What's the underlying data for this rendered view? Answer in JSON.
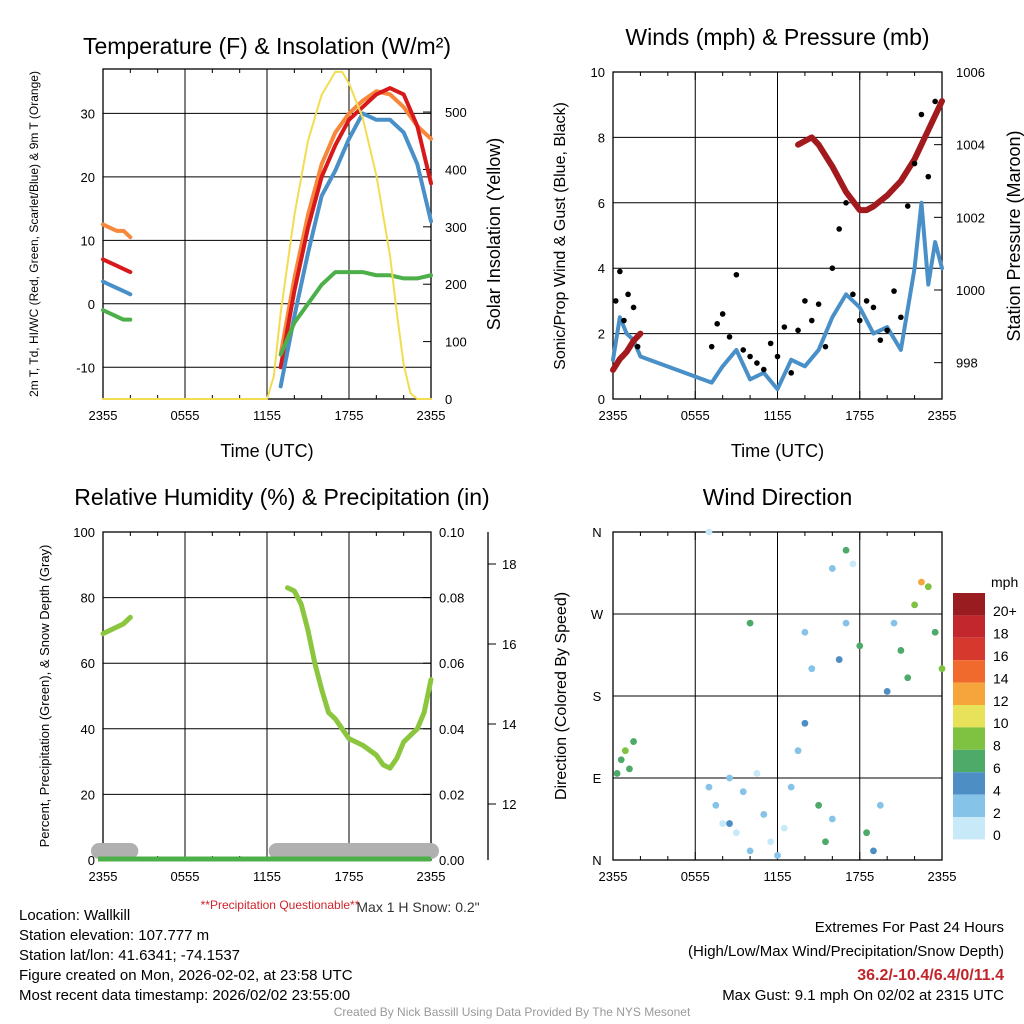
{
  "x_ticks": [
    "2355",
    "0555",
    "1155",
    "1755",
    "2355"
  ],
  "chart_data": [
    {
      "id": "temperature",
      "type": "line",
      "title": "Temperature (F) & Insolation (W/m²)",
      "xlabel": "Time (UTC)",
      "ylabel_left": "2m T, Td, HI/WC (Red, Green, Scarlet/Blue) & 9m T (Orange)",
      "ylabel_right": "Solar Insolation (Yellow)",
      "ylim_left": [
        -15,
        37
      ],
      "yticks_left": [
        -10,
        0,
        10,
        20,
        30
      ],
      "ylim_right": [
        0,
        575
      ],
      "yticks_right": [
        0,
        100,
        200,
        300,
        400,
        500
      ],
      "series": [
        {
          "name": "9m T",
          "color": "#f7873a",
          "axis": "left",
          "x": [
            0,
            0.5,
            1,
            1.5,
            2,
            12.3,
            13,
            14,
            15,
            16,
            17,
            18,
            19,
            20,
            21,
            22,
            23,
            24
          ],
          "y": [
            12.5,
            12,
            11.5,
            11.5,
            10.5,
            null,
            -8,
            4,
            14,
            22,
            27,
            30,
            32,
            33.5,
            33,
            31,
            28,
            26
          ]
        },
        {
          "name": "2m T",
          "color": "#d7191c",
          "axis": "left",
          "x": [
            0,
            0.5,
            1,
            1.5,
            2,
            12.3,
            13,
            14,
            15,
            16,
            17,
            18,
            19,
            20,
            21,
            22,
            23,
            24
          ],
          "y": [
            7,
            6.5,
            6,
            5.5,
            5,
            null,
            -10,
            2,
            12,
            20,
            25,
            29,
            31,
            33,
            34,
            33,
            28,
            19
          ]
        },
        {
          "name": "HI/WC",
          "color": "#4a90c8",
          "axis": "left",
          "x": [
            0,
            0.5,
            1,
            1.5,
            2,
            12.3,
            13,
            14,
            15,
            16,
            17,
            18,
            19,
            20,
            21,
            22,
            23,
            24
          ],
          "y": [
            3.5,
            3,
            2.5,
            2,
            1.5,
            null,
            -13,
            -2,
            8,
            17,
            21,
            26,
            30,
            29,
            29,
            27,
            22,
            13
          ]
        },
        {
          "name": "2m Td",
          "color": "#4daf4a",
          "axis": "left",
          "x": [
            0,
            0.5,
            1,
            1.5,
            2,
            12.3,
            13,
            14,
            15,
            16,
            17,
            18,
            19,
            20,
            21,
            22,
            23,
            24
          ],
          "y": [
            -1,
            -1.5,
            -2,
            -2.5,
            -2.5,
            null,
            -8,
            -3,
            0,
            3,
            5,
            5,
            5,
            4.5,
            4.5,
            4,
            4,
            4.5
          ]
        },
        {
          "name": "Solar Insolation",
          "color": "#f2dd50",
          "axis": "right",
          "x": [
            0,
            12,
            12.5,
            13,
            14,
            15,
            16,
            17,
            17.5,
            18,
            19,
            20,
            21,
            21.5,
            22,
            22.5,
            23,
            24
          ],
          "y": [
            0,
            0,
            40,
            150,
            320,
            450,
            530,
            570,
            570,
            550,
            490,
            390,
            250,
            150,
            60,
            10,
            0,
            0
          ]
        }
      ]
    },
    {
      "id": "winds",
      "type": "scatter",
      "title": "Winds (mph) & Pressure (mb)",
      "xlabel": "Time (UTC)",
      "ylabel_left": "Sonic/Prop Wind & Gust (Blue, Black)",
      "ylabel_right": "Station Pressure (Maroon)",
      "ylim_left": [
        0,
        10
      ],
      "yticks_left": [
        0,
        2,
        4,
        6,
        8,
        10
      ],
      "ylim_right": [
        997,
        1006
      ],
      "yticks_right": [
        998,
        1000,
        1002,
        1004,
        1006
      ],
      "series": [
        {
          "name": "Gust",
          "color": "#000000",
          "axis": "left",
          "x": [
            0.2,
            0.5,
            0.8,
            1.1,
            1.5,
            1.8,
            7.2,
            7.6,
            8.0,
            8.5,
            9.0,
            9.5,
            10.0,
            10.5,
            11.0,
            11.5,
            12.0,
            12.5,
            13.0,
            13.5,
            14.0,
            14.5,
            15.0,
            15.5,
            16.0,
            16.5,
            17.0,
            17.5,
            18.0,
            18.5,
            19.0,
            19.5,
            20.0,
            20.5,
            21.0,
            21.5,
            22.0,
            22.5,
            23.0,
            23.5
          ],
          "y": [
            3.0,
            3.9,
            2.4,
            3.2,
            2.8,
            1.6,
            1.6,
            2.3,
            2.6,
            1.9,
            3.8,
            1.5,
            1.3,
            1.1,
            0.9,
            1.7,
            1.3,
            2.2,
            0.8,
            2.1,
            3.0,
            2.4,
            2.9,
            1.6,
            4.0,
            5.2,
            6.0,
            3.2,
            2.4,
            3.0,
            2.8,
            1.8,
            2.1,
            3.3,
            2.5,
            5.9,
            7.2,
            8.7,
            6.8,
            9.1
          ]
        },
        {
          "name": "Wind",
          "color": "#4a90c8",
          "axis": "left",
          "x": [
            0,
            0.5,
            1,
            1.5,
            2,
            7.2,
            8,
            9,
            10,
            11,
            12,
            13,
            14,
            15,
            16,
            17,
            18,
            19,
            20,
            21,
            22,
            22.5,
            23,
            23.5,
            24
          ],
          "y": [
            1.2,
            2.5,
            2.0,
            1.8,
            1.3,
            0.5,
            1.0,
            1.5,
            0.6,
            0.8,
            0.3,
            1.2,
            1.0,
            1.5,
            2.5,
            3.2,
            2.8,
            2.0,
            2.2,
            1.5,
            4.0,
            6.0,
            3.5,
            4.8,
            4.0
          ]
        },
        {
          "name": "Pressure",
          "color": "#a21a1e",
          "axis": "right",
          "x": [
            0,
            0.5,
            1,
            1.5,
            2,
            12.7,
            13.5,
            14,
            14.5,
            15,
            16,
            17,
            18,
            18.5,
            19,
            20,
            21,
            22,
            23,
            24
          ],
          "y": [
            997.8,
            998.1,
            998.3,
            998.6,
            998.8,
            null,
            1004.0,
            1004.1,
            1004.2,
            1004.0,
            1003.4,
            1002.7,
            1002.2,
            1002.2,
            1002.3,
            1002.6,
            1003.0,
            1003.6,
            1004.4,
            1005.2
          ]
        }
      ]
    },
    {
      "id": "humidity",
      "type": "line",
      "title": "Relative Humidity (%) & Precipitation (in)",
      "ylabel_left": "Percent, Precipitation (Green), & Snow Depth (Gray)",
      "ylim_left": [
        0,
        100
      ],
      "yticks_left": [
        0,
        20,
        40,
        60,
        80,
        100
      ],
      "ylim_precip": [
        0,
        0.1
      ],
      "yticks_precip": [
        "0.00",
        "0.02",
        "0.04",
        "0.06",
        "0.08",
        "0.10"
      ],
      "ylim_snow": [
        10.6,
        18.8
      ],
      "yticks_snow": [
        12,
        14,
        16,
        18
      ],
      "note": "**Precipitation Questionable**",
      "snow_note": "Max 1 H Snow: 0.2\"",
      "series": [
        {
          "name": "Relative Humidity",
          "color": "#8cc63f",
          "axis": "left",
          "x": [
            0,
            0.5,
            1,
            1.5,
            2,
            13,
            13.5,
            14,
            14.5,
            15,
            15.5,
            16,
            16.5,
            17,
            18,
            19,
            20,
            20.5,
            21,
            21.5,
            22,
            22.5,
            23,
            23.5,
            24
          ],
          "y": [
            69,
            70,
            71,
            72,
            74,
            null,
            83,
            82,
            78,
            70,
            60,
            52,
            45,
            43,
            37,
            35,
            32,
            29,
            28,
            31,
            36,
            38,
            40,
            45,
            55
          ]
        },
        {
          "name": "Snow Depth",
          "color": "#b0b0b0",
          "axis": "left",
          "x": [
            0,
            2,
            13,
            24
          ],
          "y": [
            0.5,
            0.5,
            0.5,
            0.5
          ]
        },
        {
          "name": "Precipitation",
          "color": "#4daf4a",
          "axis": "left",
          "x": [
            0,
            24
          ],
          "y": [
            0,
            0
          ]
        }
      ]
    },
    {
      "id": "direction",
      "type": "scatter",
      "title": "Wind Direction",
      "ylabel": "Direction (Colored By Speed)",
      "yticks": [
        "N",
        "E",
        "S",
        "W",
        "N"
      ],
      "ylim": [
        0,
        360
      ],
      "legend_title": "mph",
      "legend_labels": [
        "0",
        "2",
        "4",
        "6",
        "8",
        "10",
        "12",
        "14",
        "16",
        "18",
        "20+"
      ],
      "legend_colors": [
        "#c7e9f8",
        "#86c3e8",
        "#4d8fc4",
        "#4daa69",
        "#7fc242",
        "#e8e15a",
        "#f6a43c",
        "#ef6a2c",
        "#d7382e",
        "#c1272d",
        "#991d20"
      ],
      "points": {
        "x": [
          0.3,
          0.6,
          0.9,
          1.2,
          1.5,
          7.0,
          7.5,
          8.0,
          8.5,
          9.0,
          9.5,
          10.0,
          10.5,
          11.0,
          11.5,
          12.0,
          12.5,
          13.0,
          13.5,
          14.0,
          14.5,
          15.0,
          15.5,
          16.0,
          16.5,
          17.0,
          17.5,
          18.0,
          18.5,
          19.0,
          19.5,
          20.0,
          20.5,
          21.0,
          21.5,
          22.0,
          22.5,
          23.0,
          23.5,
          24.0,
          7.0,
          14.0,
          16.0,
          17.0,
          8.5,
          10.0
        ],
        "y": [
          95,
          110,
          120,
          100,
          130,
          80,
          60,
          40,
          90,
          30,
          75,
          10,
          95,
          50,
          20,
          5,
          35,
          80,
          120,
          150,
          210,
          60,
          20,
          45,
          220,
          340,
          325,
          235,
          30,
          10,
          60,
          185,
          260,
          230,
          200,
          280,
          305,
          300,
          250,
          210,
          362,
          250,
          320,
          260,
          40,
          260
        ],
        "s": [
          3,
          3,
          4,
          3,
          3,
          1,
          1,
          0,
          1,
          0,
          1,
          1,
          0,
          1,
          0,
          1,
          0,
          1,
          1,
          2,
          1,
          3,
          3,
          1,
          2,
          3,
          0,
          3,
          3,
          2,
          1,
          2,
          1,
          3,
          3,
          4,
          6,
          4,
          3,
          4,
          0,
          1,
          1,
          1,
          2,
          3
        ]
      }
    }
  ],
  "info_left": [
    "Location: Wallkill",
    "Station elevation: 107.777 m",
    "Station lat/lon: 41.6341; -74.1537",
    "Figure created on Mon, 2026-02-02, at 23:58 UTC",
    "Most recent data timestamp: 2026/02/02 23:55:00"
  ],
  "info_right": {
    "title": "Extremes For Past 24 Hours",
    "subtitle": "(High/Low/Max Wind/Precipitation/Snow Depth)",
    "values": "36.2/-10.4/6.4/0/11.4",
    "max_gust": "Max Gust: 9.1 mph On 02/02 at 2315 UTC"
  },
  "credit": "Created By Nick Bassill Using Data Provided By The NYS Mesonet"
}
